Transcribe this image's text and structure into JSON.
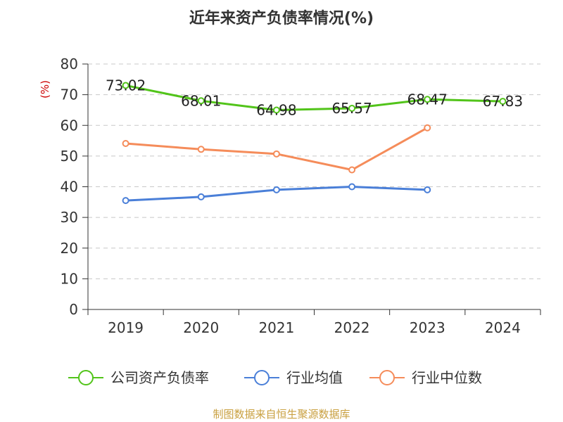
{
  "chart_data": {
    "type": "line",
    "title": "近年来资产负债率情况(%)",
    "ylabel": "(%)",
    "xlabel": "",
    "categories": [
      "2019",
      "2020",
      "2021",
      "2022",
      "2023",
      "2024"
    ],
    "ylim": [
      0,
      80
    ],
    "yticks": [
      0,
      10,
      20,
      30,
      40,
      50,
      60,
      70,
      80
    ],
    "grid": true,
    "legend_position": "bottom",
    "series": [
      {
        "name": "公司资产负债率",
        "color": "#52c41a",
        "values": [
          73.02,
          68.01,
          64.98,
          65.57,
          68.47,
          67.83
        ],
        "labels": [
          "73.02",
          "68.01",
          "64.98",
          "65.57",
          "68.47",
          "67.83"
        ]
      },
      {
        "name": "行业均值",
        "color": "#4a7fd8",
        "values": [
          35.5,
          36.7,
          39.0,
          40.0,
          39.0,
          null
        ]
      },
      {
        "name": "行业中位数",
        "color": "#f58c5a",
        "values": [
          54.1,
          52.2,
          50.7,
          45.5,
          59.2,
          null
        ]
      }
    ]
  },
  "source": "制图数据来自恒生聚源数据库"
}
